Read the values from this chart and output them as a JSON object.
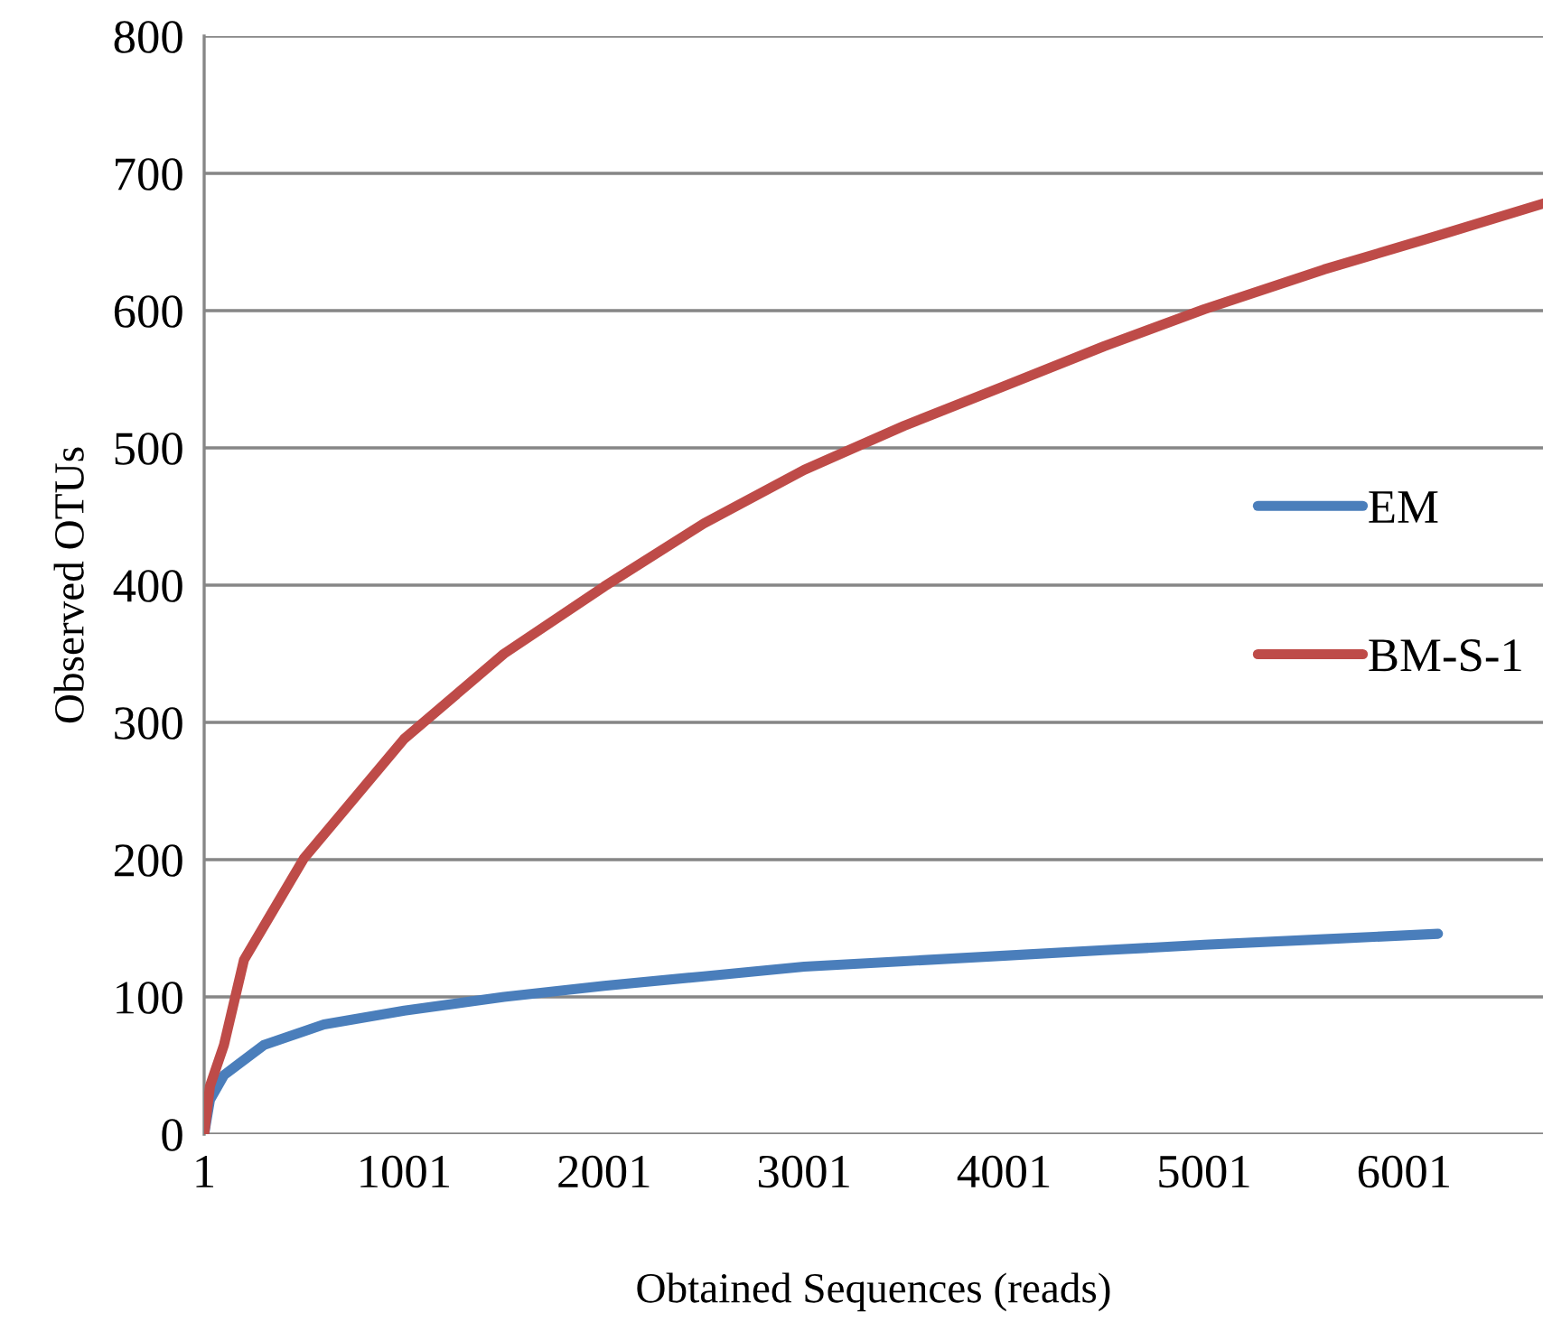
{
  "chart_data": {
    "type": "line",
    "xlabel": "Obtained Sequences (reads)",
    "ylabel": "Observed OTUs",
    "xlim": [
      1,
      6695
    ],
    "xticks": [
      1,
      1001,
      2001,
      3001,
      4001,
      5001,
      6001
    ],
    "ylim": [
      0,
      800
    ],
    "yticks": [
      0,
      100,
      200,
      300,
      400,
      500,
      600,
      700,
      800
    ],
    "grid": "y",
    "legend": "right",
    "marker": "none",
    "line_style": "solid",
    "series": [
      {
        "name": "EM",
        "color": "#4a7ebb",
        "x": [
          1,
          30,
          100,
          300,
          600,
          1001,
          1500,
          2001,
          2500,
          3001,
          3500,
          4001,
          4500,
          5001,
          5600,
          6170
        ],
        "values": [
          0,
          25,
          43,
          65,
          80,
          90,
          100,
          108,
          115,
          122,
          126,
          130,
          134,
          138,
          142,
          146
        ]
      },
      {
        "name": "BM-S-1",
        "color": "#be4b48",
        "x": [
          1,
          30,
          100,
          200,
          500,
          1001,
          1500,
          2001,
          2500,
          3001,
          3500,
          4001,
          4500,
          5001,
          5600,
          6200,
          6695
        ],
        "values": [
          0,
          35,
          65,
          127,
          201,
          288,
          350,
          399,
          445,
          484,
          516,
          545,
          574,
          601,
          630,
          656,
          678
        ]
      }
    ]
  }
}
